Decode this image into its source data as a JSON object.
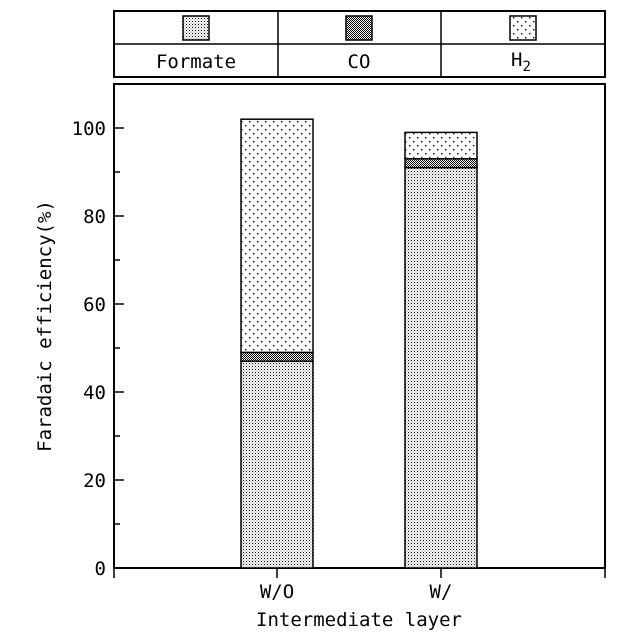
{
  "chart_data": {
    "type": "bar",
    "stacked": true,
    "categories": [
      "W/O",
      "W/"
    ],
    "series": [
      {
        "name": "Formate",
        "values": [
          47,
          91
        ]
      },
      {
        "name": "CO",
        "values": [
          2,
          2
        ]
      },
      {
        "name": "H",
        "name_subscript": "2",
        "values": [
          53,
          6
        ]
      }
    ],
    "xlabel": "Intermediate layer",
    "ylabel": "Faradaic efficiency(%)",
    "ylim": [
      0,
      110
    ],
    "yticks": [
      0,
      20,
      40,
      60,
      80,
      100
    ],
    "grid": false,
    "legend_position": "top"
  }
}
